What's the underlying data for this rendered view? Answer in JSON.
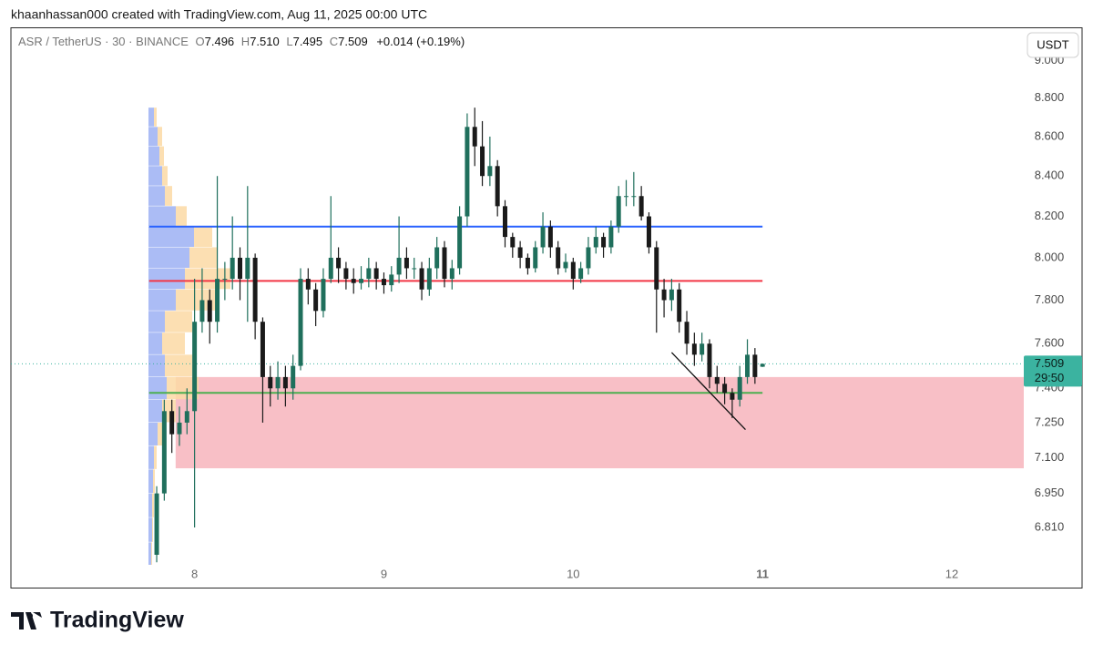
{
  "header": {
    "text": "khaanhassan000 created with TradingView.com, Aug 11, 2025 00:00 UTC"
  },
  "legend": {
    "symbol": "ASR / TetherUS · 30 · BINANCE",
    "o_label": "O",
    "open": "7.496",
    "h_label": "H",
    "high": "7.510",
    "l_label": "L",
    "low": "7.495",
    "c_label": "C",
    "close": "7.509",
    "change": "+0.014 (+0.19%)"
  },
  "currency_button": "USDT",
  "footer": {
    "brand": "TradingView"
  },
  "chart_data": {
    "type": "candlestick",
    "x": [
      7.8,
      7.84,
      7.88,
      7.92,
      7.96,
      8.0,
      8.04,
      8.08,
      8.12,
      8.16,
      8.2,
      8.24,
      8.28,
      8.32,
      8.36,
      8.4,
      8.44,
      8.48,
      8.52,
      8.56,
      8.6,
      8.64,
      8.68,
      8.72,
      8.76,
      8.8,
      8.84,
      8.88,
      8.92,
      8.96,
      9.0,
      9.04,
      9.08,
      9.12,
      9.16,
      9.2,
      9.24,
      9.28,
      9.32,
      9.36,
      9.4,
      9.44,
      9.48,
      9.52,
      9.56,
      9.6,
      9.64,
      9.68,
      9.72,
      9.76,
      9.8,
      9.84,
      9.88,
      9.92,
      9.96,
      10.0,
      10.04,
      10.08,
      10.12,
      10.16,
      10.2,
      10.24,
      10.28,
      10.32,
      10.36,
      10.4,
      10.44,
      10.48,
      10.52,
      10.56,
      10.6,
      10.64,
      10.68,
      10.72,
      10.76,
      10.8,
      10.84,
      10.88,
      10.92,
      10.96,
      11.0
    ],
    "open": [
      6.7,
      6.95,
      7.3,
      7.2,
      7.25,
      7.3,
      7.7,
      7.8,
      7.7,
      7.9,
      7.9,
      8.0,
      7.9,
      8.0,
      7.7,
      7.45,
      7.4,
      7.45,
      7.4,
      7.5,
      7.9,
      7.85,
      7.75,
      7.9,
      8.0,
      7.95,
      7.9,
      7.88,
      7.9,
      7.95,
      7.9,
      7.87,
      7.92,
      8.0,
      7.95,
      7.95,
      7.85,
      7.95,
      8.05,
      7.9,
      7.95,
      8.2,
      8.65,
      8.55,
      8.4,
      8.45,
      8.25,
      8.1,
      8.05,
      8.0,
      7.95,
      8.05,
      8.15,
      8.05,
      7.95,
      7.98,
      7.9,
      7.95,
      8.05,
      8.1,
      8.05,
      8.15,
      8.3,
      8.3,
      8.3,
      8.2,
      8.05,
      7.85,
      7.8,
      7.85,
      7.7,
      7.6,
      7.55,
      7.6,
      7.45,
      7.42,
      7.38,
      7.35,
      7.45,
      7.55,
      7.496
    ],
    "high": [
      6.98,
      7.35,
      7.35,
      7.32,
      7.4,
      7.9,
      7.95,
      7.85,
      8.4,
      7.98,
      8.2,
      8.05,
      8.35,
      8.02,
      7.72,
      7.5,
      7.52,
      7.5,
      7.55,
      7.95,
      7.95,
      7.88,
      7.95,
      8.3,
      8.05,
      7.98,
      7.95,
      7.96,
      8.0,
      7.98,
      7.93,
      7.96,
      8.2,
      8.05,
      8.0,
      7.98,
      8.0,
      8.1,
      8.08,
      7.99,
      8.25,
      8.72,
      8.75,
      8.68,
      8.6,
      8.48,
      8.28,
      8.12,
      8.08,
      8.02,
      8.08,
      8.22,
      8.18,
      8.08,
      8.02,
      8.0,
      7.98,
      8.1,
      8.15,
      8.12,
      8.18,
      8.35,
      8.38,
      8.42,
      8.35,
      8.22,
      8.08,
      7.9,
      7.9,
      7.88,
      7.75,
      7.65,
      7.65,
      7.62,
      7.5,
      7.45,
      7.4,
      7.5,
      7.62,
      7.58,
      7.51
    ],
    "low": [
      6.67,
      6.92,
      7.12,
      7.15,
      7.2,
      6.81,
      7.65,
      7.6,
      7.65,
      7.8,
      7.85,
      7.8,
      7.7,
      7.62,
      7.25,
      7.32,
      7.35,
      7.32,
      7.35,
      7.48,
      7.78,
      7.68,
      7.72,
      7.88,
      7.88,
      7.85,
      7.83,
      7.85,
      7.86,
      7.85,
      7.83,
      7.84,
      7.88,
      7.9,
      7.9,
      7.8,
      7.82,
      7.9,
      7.86,
      7.85,
      7.92,
      8.15,
      8.45,
      8.35,
      8.35,
      8.2,
      8.05,
      8.0,
      7.95,
      7.92,
      7.93,
      8.02,
      8.0,
      7.92,
      7.93,
      7.85,
      7.88,
      7.92,
      8.02,
      8.0,
      8.02,
      8.12,
      8.25,
      8.25,
      8.18,
      8.02,
      7.65,
      7.72,
      7.75,
      7.65,
      7.55,
      7.5,
      7.52,
      7.4,
      7.38,
      7.33,
      7.27,
      7.32,
      7.42,
      7.42,
      7.495
    ],
    "close": [
      6.95,
      7.3,
      7.2,
      7.25,
      7.3,
      7.7,
      7.8,
      7.7,
      7.9,
      7.9,
      8.0,
      7.9,
      8.0,
      7.7,
      7.45,
      7.4,
      7.45,
      7.4,
      7.5,
      7.9,
      7.85,
      7.75,
      7.9,
      8.0,
      7.95,
      7.9,
      7.88,
      7.9,
      7.95,
      7.9,
      7.87,
      7.92,
      8.0,
      7.95,
      7.95,
      7.85,
      7.95,
      8.05,
      7.9,
      7.95,
      8.2,
      8.65,
      8.55,
      8.4,
      8.45,
      8.25,
      8.1,
      8.05,
      8.0,
      7.95,
      8.05,
      8.15,
      8.05,
      7.95,
      7.98,
      7.9,
      7.95,
      8.05,
      8.1,
      8.05,
      8.15,
      8.3,
      8.3,
      8.3,
      8.2,
      8.05,
      7.85,
      7.8,
      7.85,
      7.7,
      7.6,
      7.55,
      7.6,
      7.45,
      7.42,
      7.38,
      7.35,
      7.45,
      7.55,
      7.45,
      7.509
    ],
    "up_color": "#1f6f5c",
    "down_color": "#1a1a1a",
    "xlim": [
      7.03,
      12.38
    ],
    "xticks": [
      8,
      9,
      10,
      11,
      12
    ],
    "ylim": [
      6.66,
      9.13
    ],
    "log_scale": true,
    "yticks": [
      {
        "value": 9.0,
        "label": "9.000"
      },
      {
        "value": 8.8,
        "label": "8.800"
      },
      {
        "value": 8.6,
        "label": "8.600"
      },
      {
        "value": 8.4,
        "label": "8.400"
      },
      {
        "value": 8.2,
        "label": "8.200"
      },
      {
        "value": 8.0,
        "label": "8.000"
      },
      {
        "value": 7.8,
        "label": "7.800"
      },
      {
        "value": 7.6,
        "label": "7.600"
      },
      {
        "value": 7.4,
        "label": "7.400"
      },
      {
        "value": 7.25,
        "label": "7.250"
      },
      {
        "value": 7.1,
        "label": "7.100"
      },
      {
        "value": 6.95,
        "label": "6.950"
      },
      {
        "value": 6.81,
        "label": "6.810"
      }
    ],
    "hlines": [
      {
        "value": 8.15,
        "x": [
          7.76,
          11.0
        ],
        "color": "#2962ff"
      },
      {
        "value": 7.89,
        "x": [
          7.76,
          11.0
        ],
        "color": "#f23645"
      },
      {
        "value": 7.38,
        "x": [
          7.76,
          11.0
        ],
        "color": "#4caf50"
      }
    ],
    "zone": {
      "y": [
        7.055,
        7.45
      ],
      "x": [
        7.9,
        12.38
      ],
      "color": "#f8bfc6"
    },
    "trend_line": {
      "x": [
        10.52,
        10.91
      ],
      "y": [
        7.56,
        7.22
      ],
      "color": "#111111"
    },
    "last_price": 7.509,
    "last_price_color": "#3bb3a0",
    "countdown": "29:50",
    "volume_profile": {
      "prices": [
        6.7,
        6.8,
        6.9,
        7.0,
        7.1,
        7.2,
        7.3,
        7.4,
        7.5,
        7.6,
        7.7,
        7.8,
        7.9,
        8.0,
        8.1,
        8.2,
        8.3,
        8.4,
        8.5,
        8.6,
        8.7
      ],
      "buy": [
        3,
        4,
        4,
        5,
        6,
        10,
        15,
        20,
        18,
        15,
        18,
        30,
        40,
        45,
        50,
        30,
        18,
        15,
        12,
        10,
        6
      ],
      "sell": [
        1,
        1,
        2,
        2,
        3,
        6,
        15,
        35,
        30,
        25,
        30,
        45,
        50,
        30,
        20,
        12,
        8,
        6,
        5,
        5,
        3
      ],
      "buy_color": "#8fa6f2",
      "sell_color": "#fbd9a4"
    }
  }
}
